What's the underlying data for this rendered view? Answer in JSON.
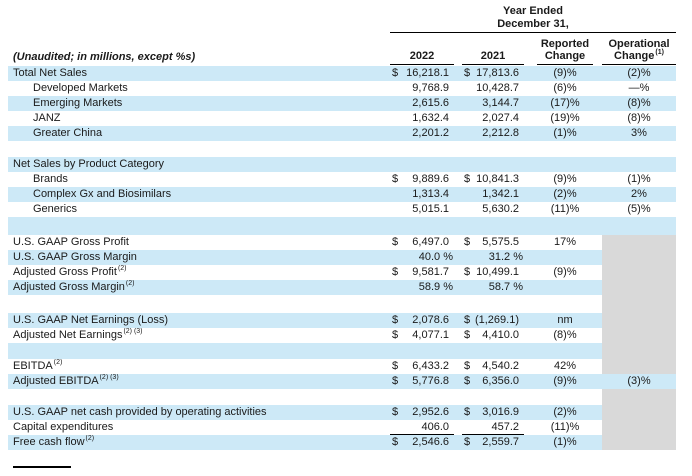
{
  "header": {
    "period_line1": "Year Ended",
    "period_line2": "December 31,",
    "unaudited_note": "(Unaudited; in millions, except %s)",
    "col_2022": "2022",
    "col_2021": "2021",
    "reported_line1": "Reported",
    "reported_line2": "Change",
    "operational_line1": "Operational",
    "operational_line2": "Change",
    "operational_sup": "(1)"
  },
  "colors": {
    "row_highlight_blue": "#cde9f7",
    "na_block_gray": "#d9d9d9"
  },
  "rows": [
    {
      "type": "data",
      "bg": "blue",
      "label": "Total Net Sales",
      "dollar_2022": "$",
      "value_2022": "16,218.1",
      "dollar_2021": "$",
      "value_2021": "17,813.6",
      "reported": "(9)%",
      "operational": "(2)%"
    },
    {
      "type": "data",
      "bg": "white",
      "indent": true,
      "label": "Developed Markets",
      "value_2022": "9,768.9",
      "value_2021": "10,428.7",
      "reported": "(6)%",
      "operational": "—%"
    },
    {
      "type": "data",
      "bg": "blue",
      "indent": true,
      "label": "Emerging Markets",
      "value_2022": "2,615.6",
      "value_2021": "3,144.7",
      "reported": "(17)%",
      "operational": "(8)%"
    },
    {
      "type": "data",
      "bg": "white",
      "indent": true,
      "label": "JANZ",
      "value_2022": "1,632.4",
      "value_2021": "2,027.4",
      "reported": "(19)%",
      "operational": "(8)%"
    },
    {
      "type": "data",
      "bg": "blue",
      "indent": true,
      "label": "Greater China",
      "value_2022": "2,201.2",
      "value_2021": "2,212.8",
      "reported": "(1)%",
      "operational": "3%"
    },
    {
      "type": "spacer",
      "bg": "white",
      "height": 16
    },
    {
      "type": "data",
      "bg": "blue",
      "label": "Net Sales by Product Category"
    },
    {
      "type": "data",
      "bg": "white",
      "indent": true,
      "label": "Brands",
      "dollar_2022": "$",
      "value_2022": "9,889.6",
      "dollar_2021": "$",
      "value_2021": "10,841.3",
      "reported": "(9)%",
      "operational": "(1)%"
    },
    {
      "type": "data",
      "bg": "blue",
      "indent": true,
      "label": "Complex Gx and Biosimilars",
      "value_2022": "1,313.4",
      "value_2021": "1,342.1",
      "reported": "(2)%",
      "operational": "2%"
    },
    {
      "type": "data",
      "bg": "white",
      "indent": true,
      "label": "Generics",
      "value_2022": "5,015.1",
      "value_2021": "5,630.2",
      "reported": "(11)%",
      "operational": "(5)%"
    },
    {
      "type": "spacer",
      "bg": "blue",
      "height": 18
    },
    {
      "type": "data",
      "bg": "white",
      "label": "U.S. GAAP Gross Profit",
      "dollar_2022": "$",
      "value_2022": "6,497.0",
      "dollar_2021": "$",
      "value_2021": "5,575.5",
      "reported": "17%",
      "op_gray": true
    },
    {
      "type": "data",
      "bg": "blue",
      "label": "U.S. GAAP Gross Margin",
      "value_2022": "40.0 %",
      "value_2021": "31.2 %",
      "op_gray": true
    },
    {
      "type": "data",
      "bg": "white",
      "label": "Adjusted Gross Profit",
      "sup": "(2)",
      "dollar_2022": "$",
      "value_2022": "9,581.7",
      "dollar_2021": "$",
      "value_2021": "10,499.1",
      "reported": "(9)%",
      "op_gray": true
    },
    {
      "type": "data",
      "bg": "blue",
      "label": "Adjusted Gross Margin",
      "sup": "(2)",
      "value_2022": "58.9 %",
      "value_2021": "58.7 %",
      "op_gray": true
    },
    {
      "type": "spacer",
      "bg": "white",
      "height": 18,
      "op_gray": true
    },
    {
      "type": "data",
      "bg": "blue",
      "label": "U.S. GAAP Net Earnings (Loss)",
      "dollar_2022": "$",
      "value_2022": "2,078.6",
      "dollar_2021": "$",
      "value_2021": "(1,269.1)",
      "reported": "nm",
      "op_gray": true
    },
    {
      "type": "data",
      "bg": "white",
      "label": "Adjusted Net Earnings",
      "sup": "(2) (3)",
      "dollar_2022": "$",
      "value_2022": "4,077.1",
      "dollar_2021": "$",
      "value_2021": "4,410.0",
      "reported": "(8)%",
      "op_gray": true
    },
    {
      "type": "spacer",
      "bg": "blue",
      "height": 16,
      "op_gray": true
    },
    {
      "type": "data",
      "bg": "white",
      "label": "EBITDA",
      "sup": "(2)",
      "dollar_2022": "$",
      "value_2022": "6,433.2",
      "dollar_2021": "$",
      "value_2021": "4,540.2",
      "reported": "42%",
      "op_gray": true
    },
    {
      "type": "data",
      "bg": "blue",
      "label": "Adjusted EBITDA",
      "sup": "(2) (3)",
      "dollar_2022": "$",
      "value_2022": "5,776.8",
      "dollar_2021": "$",
      "value_2021": "6,356.0",
      "reported": "(9)%",
      "operational": "(3)%"
    },
    {
      "type": "spacer",
      "bg": "white",
      "height": 16,
      "op_gray": true
    },
    {
      "type": "data",
      "bg": "blue",
      "label": "U.S. GAAP net cash provided by operating activities",
      "dollar_2022": "$",
      "value_2022": "2,952.6",
      "dollar_2021": "$",
      "value_2021": "3,016.9",
      "reported": "(2)%",
      "op_gray": true
    },
    {
      "type": "data",
      "bg": "white",
      "label": "Capital expenditures",
      "value_2022": "406.0",
      "value_2021": "457.2",
      "reported": "(11)%",
      "op_gray": true,
      "underline": true
    },
    {
      "type": "data",
      "bg": "blue",
      "label": "Free cash flow",
      "sup": "(2)",
      "dollar_2022": "$",
      "value_2022": "2,546.6",
      "dollar_2021": "$",
      "value_2021": "2,559.7",
      "reported": "(1)%",
      "op_gray": true
    }
  ]
}
